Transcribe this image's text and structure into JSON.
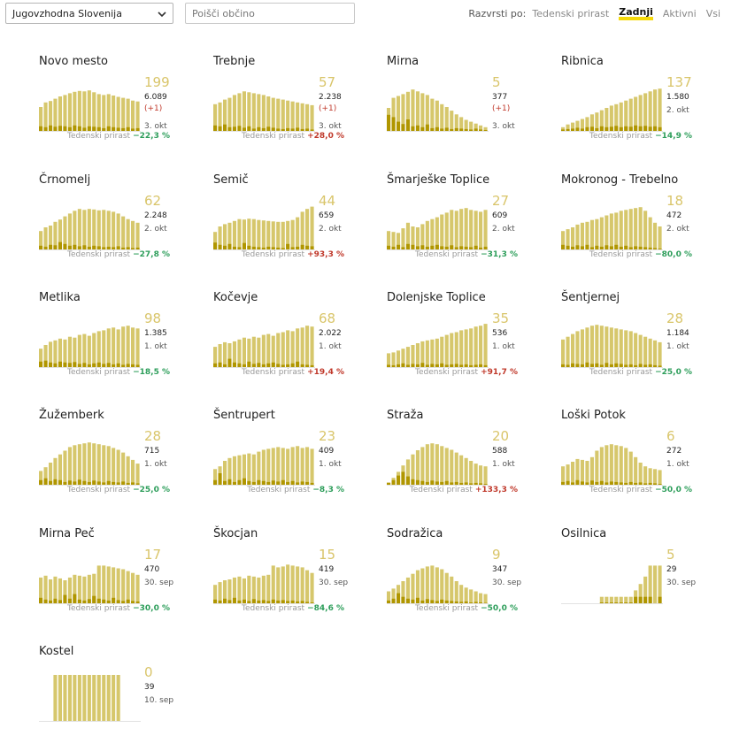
{
  "filters": {
    "region": "Jugovzhodna Slovenija",
    "search_placeholder": "Poišči občino"
  },
  "sort": {
    "label": "Razvrsti po:",
    "options": [
      "Tedenski prirast",
      "Zadnji",
      "Aktivni",
      "Vsi"
    ],
    "active": "Zadnji"
  },
  "trend_label": "Tedenski prirast",
  "colors": {
    "bar": "#d6c76c",
    "bar_dark": "#b09600",
    "number": "#d9c56a",
    "down": "#2e9e5b",
    "up": "#c0392b"
  },
  "municipalities": [
    {
      "name": "Novo mesto",
      "value": "199",
      "total": "6.089",
      "delta": "(+1)",
      "date": "3. okt",
      "trend": "−22,3 %",
      "trend_dir": "down",
      "bars": [
        0.52,
        0.62,
        0.65,
        0.7,
        0.75,
        0.78,
        0.82,
        0.85,
        0.87,
        0.86,
        0.88,
        0.84,
        0.8,
        0.78,
        0.8,
        0.77,
        0.74,
        0.72,
        0.7,
        0.66,
        0.64
      ],
      "new": [
        0.1,
        0.08,
        0.12,
        0.09,
        0.11,
        0.1,
        0.08,
        0.12,
        0.1,
        0.07,
        0.1,
        0.09,
        0.08,
        0.06,
        0.1,
        0.08,
        0.07,
        0.06,
        0.08,
        0.05,
        0.06
      ]
    },
    {
      "name": "Trebnje",
      "value": "57",
      "total": "2.238",
      "delta": "(+1)",
      "date": "3. okt",
      "trend": "+28,0 %",
      "trend_dir": "up",
      "bars": [
        0.58,
        0.62,
        0.68,
        0.72,
        0.78,
        0.82,
        0.86,
        0.84,
        0.82,
        0.8,
        0.78,
        0.75,
        0.72,
        0.7,
        0.68,
        0.66,
        0.64,
        0.62,
        0.6,
        0.58,
        0.56
      ],
      "new": [
        0.12,
        0.1,
        0.14,
        0.08,
        0.09,
        0.11,
        0.07,
        0.1,
        0.05,
        0.08,
        0.06,
        0.09,
        0.07,
        0.05,
        0.04,
        0.06,
        0.05,
        0.07,
        0.04,
        0.05,
        0.03
      ]
    },
    {
      "name": "Mirna",
      "value": "5",
      "total": "377",
      "delta": "(+1)",
      "date": "3. okt",
      "trend": "",
      "trend_dir": "down",
      "bars": [
        0.5,
        0.72,
        0.76,
        0.8,
        0.85,
        0.9,
        0.86,
        0.82,
        0.78,
        0.7,
        0.66,
        0.58,
        0.52,
        0.44,
        0.36,
        0.3,
        0.24,
        0.2,
        0.16,
        0.12,
        0.08
      ],
      "new": [
        0.35,
        0.3,
        0.2,
        0.15,
        0.25,
        0.1,
        0.12,
        0.08,
        0.14,
        0.06,
        0.08,
        0.05,
        0.07,
        0.04,
        0.06,
        0.05,
        0.04,
        0.03,
        0.05,
        0.03,
        0.02
      ]
    },
    {
      "name": "Ribnica",
      "value": "137",
      "total": "1.580",
      "delta": "",
      "date": "2. okt",
      "trend": "−14,9 %",
      "trend_dir": "down",
      "bars": [
        0.08,
        0.14,
        0.18,
        0.22,
        0.26,
        0.3,
        0.36,
        0.4,
        0.45,
        0.5,
        0.55,
        0.58,
        0.62,
        0.66,
        0.7,
        0.74,
        0.78,
        0.82,
        0.86,
        0.9,
        0.92
      ],
      "new": [
        0.03,
        0.04,
        0.05,
        0.07,
        0.05,
        0.08,
        0.09,
        0.06,
        0.1,
        0.08,
        0.09,
        0.11,
        0.08,
        0.1,
        0.09,
        0.12,
        0.1,
        0.11,
        0.09,
        0.1,
        0.08
      ]
    },
    {
      "name": "Črnomelj",
      "value": "62",
      "total": "2.248",
      "delta": "",
      "date": "2. okt",
      "trend": "−27,8 %",
      "trend_dir": "down",
      "bars": [
        0.4,
        0.48,
        0.52,
        0.6,
        0.65,
        0.72,
        0.78,
        0.84,
        0.88,
        0.86,
        0.88,
        0.87,
        0.85,
        0.86,
        0.84,
        0.82,
        0.78,
        0.72,
        0.66,
        0.62,
        0.58
      ],
      "new": [
        0.08,
        0.06,
        0.1,
        0.09,
        0.16,
        0.12,
        0.08,
        0.1,
        0.07,
        0.09,
        0.06,
        0.08,
        0.07,
        0.05,
        0.06,
        0.05,
        0.07,
        0.04,
        0.05,
        0.03,
        0.04
      ]
    },
    {
      "name": "Semič",
      "value": "44",
      "total": "659",
      "delta": "",
      "date": "2. okt",
      "trend": "+93,3 %",
      "trend_dir": "up",
      "bars": [
        0.38,
        0.5,
        0.55,
        0.58,
        0.62,
        0.66,
        0.65,
        0.67,
        0.66,
        0.64,
        0.63,
        0.62,
        0.61,
        0.6,
        0.6,
        0.62,
        0.64,
        0.7,
        0.82,
        0.88,
        0.93
      ],
      "new": [
        0.15,
        0.1,
        0.08,
        0.12,
        0.06,
        0.05,
        0.14,
        0.08,
        0.06,
        0.05,
        0.04,
        0.06,
        0.05,
        0.04,
        0.03,
        0.12,
        0.05,
        0.06,
        0.1,
        0.08,
        0.07
      ]
    },
    {
      "name": "Šmarješke Toplice",
      "value": "27",
      "total": "609",
      "delta": "",
      "date": "2. okt",
      "trend": "−31,3 %",
      "trend_dir": "down",
      "bars": [
        0.4,
        0.38,
        0.36,
        0.46,
        0.58,
        0.5,
        0.48,
        0.55,
        0.62,
        0.66,
        0.7,
        0.76,
        0.8,
        0.86,
        0.84,
        0.88,
        0.9,
        0.86,
        0.84,
        0.82,
        0.86
      ],
      "new": [
        0.08,
        0.06,
        0.1,
        0.05,
        0.12,
        0.1,
        0.07,
        0.09,
        0.06,
        0.08,
        0.1,
        0.07,
        0.06,
        0.09,
        0.05,
        0.07,
        0.06,
        0.05,
        0.08,
        0.04,
        0.06
      ]
    },
    {
      "name": "Mokronog - Trebelno",
      "value": "18",
      "total": "472",
      "delta": "",
      "date": "2. okt",
      "trend": "−80,0 %",
      "trend_dir": "down",
      "bars": [
        0.4,
        0.44,
        0.48,
        0.54,
        0.58,
        0.6,
        0.64,
        0.66,
        0.7,
        0.74,
        0.78,
        0.8,
        0.84,
        0.86,
        0.88,
        0.9,
        0.92,
        0.84,
        0.7,
        0.58,
        0.5
      ],
      "new": [
        0.1,
        0.08,
        0.06,
        0.09,
        0.07,
        0.1,
        0.05,
        0.08,
        0.06,
        0.09,
        0.07,
        0.1,
        0.06,
        0.08,
        0.05,
        0.07,
        0.06,
        0.05,
        0.04,
        0.03,
        0.02
      ]
    },
    {
      "name": "Metlika",
      "value": "98",
      "total": "1.385",
      "delta": "",
      "date": "1. okt",
      "trend": "−18,5 %",
      "trend_dir": "down",
      "bars": [
        0.4,
        0.48,
        0.55,
        0.58,
        0.62,
        0.6,
        0.66,
        0.64,
        0.7,
        0.72,
        0.68,
        0.74,
        0.78,
        0.8,
        0.84,
        0.86,
        0.82,
        0.88,
        0.9,
        0.86,
        0.84
      ],
      "new": [
        0.12,
        0.14,
        0.1,
        0.08,
        0.12,
        0.1,
        0.09,
        0.11,
        0.07,
        0.09,
        0.06,
        0.08,
        0.1,
        0.07,
        0.09,
        0.06,
        0.08,
        0.05,
        0.07,
        0.06,
        0.05
      ]
    },
    {
      "name": "Kočevje",
      "value": "68",
      "total": "2.022",
      "delta": "",
      "date": "1. okt",
      "trend": "+19,4 %",
      "trend_dir": "up",
      "bars": [
        0.44,
        0.5,
        0.54,
        0.52,
        0.56,
        0.6,
        0.64,
        0.62,
        0.66,
        0.64,
        0.7,
        0.72,
        0.68,
        0.74,
        0.76,
        0.8,
        0.78,
        0.84,
        0.86,
        0.9,
        0.88
      ],
      "new": [
        0.08,
        0.1,
        0.06,
        0.18,
        0.1,
        0.08,
        0.06,
        0.12,
        0.07,
        0.09,
        0.06,
        0.08,
        0.1,
        0.07,
        0.05,
        0.06,
        0.08,
        0.12,
        0.06,
        0.05,
        0.04
      ]
    },
    {
      "name": "Dolenjske Toplice",
      "value": "35",
      "total": "536",
      "delta": "",
      "date": "1. okt",
      "trend": "+91,7 %",
      "trend_dir": "up",
      "bars": [
        0.3,
        0.32,
        0.36,
        0.4,
        0.44,
        0.48,
        0.52,
        0.56,
        0.58,
        0.6,
        0.62,
        0.66,
        0.7,
        0.74,
        0.76,
        0.8,
        0.82,
        0.84,
        0.88,
        0.9,
        0.94
      ],
      "new": [
        0.05,
        0.04,
        0.06,
        0.08,
        0.05,
        0.07,
        0.06,
        0.09,
        0.05,
        0.07,
        0.06,
        0.08,
        0.05,
        0.06,
        0.07,
        0.05,
        0.06,
        0.04,
        0.05,
        0.06,
        0.04
      ]
    },
    {
      "name": "Šentjernej",
      "value": "28",
      "total": "1.184",
      "delta": "",
      "date": "1. okt",
      "trend": "−25,0 %",
      "trend_dir": "down",
      "bars": [
        0.6,
        0.66,
        0.72,
        0.78,
        0.82,
        0.86,
        0.9,
        0.92,
        0.9,
        0.88,
        0.86,
        0.84,
        0.82,
        0.8,
        0.78,
        0.74,
        0.7,
        0.66,
        0.62,
        0.58,
        0.54
      ],
      "new": [
        0.06,
        0.05,
        0.08,
        0.07,
        0.06,
        0.1,
        0.07,
        0.08,
        0.05,
        0.09,
        0.06,
        0.08,
        0.07,
        0.05,
        0.06,
        0.04,
        0.07,
        0.05,
        0.06,
        0.04,
        0.03
      ]
    },
    {
      "name": "Žužemberk",
      "value": "28",
      "total": "715",
      "delta": "",
      "date": "1. okt",
      "trend": "−25,0 %",
      "trend_dir": "down",
      "bars": [
        0.3,
        0.38,
        0.48,
        0.58,
        0.66,
        0.74,
        0.82,
        0.86,
        0.88,
        0.9,
        0.92,
        0.9,
        0.88,
        0.86,
        0.84,
        0.8,
        0.76,
        0.7,
        0.62,
        0.54,
        0.46
      ],
      "new": [
        0.1,
        0.14,
        0.08,
        0.12,
        0.1,
        0.06,
        0.09,
        0.07,
        0.11,
        0.08,
        0.06,
        0.09,
        0.07,
        0.05,
        0.08,
        0.06,
        0.05,
        0.07,
        0.04,
        0.05,
        0.03
      ]
    },
    {
      "name": "Šentrupert",
      "value": "23",
      "total": "409",
      "delta": "",
      "date": "1. okt",
      "trend": "−8,3 %",
      "trend_dir": "down",
      "bars": [
        0.34,
        0.4,
        0.52,
        0.58,
        0.62,
        0.64,
        0.66,
        0.68,
        0.66,
        0.72,
        0.76,
        0.78,
        0.8,
        0.82,
        0.8,
        0.78,
        0.82,
        0.84,
        0.8,
        0.82,
        0.78
      ],
      "new": [
        0.1,
        0.25,
        0.08,
        0.12,
        0.06,
        0.1,
        0.14,
        0.08,
        0.06,
        0.1,
        0.08,
        0.06,
        0.09,
        0.07,
        0.1,
        0.06,
        0.08,
        0.05,
        0.07,
        0.06,
        0.04
      ]
    },
    {
      "name": "Straža",
      "value": "20",
      "total": "588",
      "delta": "",
      "date": "1. okt",
      "trend": "+133,3 %",
      "trend_dir": "up",
      "bars": [
        0.05,
        0.15,
        0.28,
        0.42,
        0.55,
        0.66,
        0.75,
        0.82,
        0.88,
        0.9,
        0.88,
        0.84,
        0.8,
        0.76,
        0.7,
        0.64,
        0.58,
        0.52,
        0.46,
        0.42,
        0.4
      ],
      "new": [
        0.04,
        0.1,
        0.2,
        0.28,
        0.18,
        0.12,
        0.1,
        0.08,
        0.06,
        0.09,
        0.07,
        0.06,
        0.08,
        0.05,
        0.06,
        0.04,
        0.05,
        0.03,
        0.04,
        0.03,
        0.02
      ]
    },
    {
      "name": "Loški Potok",
      "value": "6",
      "total": "272",
      "delta": "",
      "date": "1. okt",
      "trend": "−50,0 %",
      "trend_dir": "down",
      "bars": [
        0.4,
        0.44,
        0.5,
        0.56,
        0.54,
        0.52,
        0.6,
        0.74,
        0.82,
        0.86,
        0.88,
        0.86,
        0.84,
        0.8,
        0.72,
        0.6,
        0.48,
        0.4,
        0.36,
        0.34,
        0.32
      ],
      "new": [
        0.06,
        0.08,
        0.05,
        0.1,
        0.07,
        0.05,
        0.09,
        0.06,
        0.08,
        0.05,
        0.07,
        0.06,
        0.05,
        0.04,
        0.06,
        0.04,
        0.05,
        0.03,
        0.04,
        0.03,
        0.02
      ]
    },
    {
      "name": "Mirna Peč",
      "value": "17",
      "total": "470",
      "delta": "",
      "date": "30. sep",
      "trend": "−30,0 %",
      "trend_dir": "down",
      "bars": [
        0.56,
        0.6,
        0.52,
        0.58,
        0.54,
        0.5,
        0.56,
        0.62,
        0.6,
        0.58,
        0.62,
        0.64,
        0.82,
        0.82,
        0.8,
        0.78,
        0.76,
        0.74,
        0.7,
        0.66,
        0.62
      ],
      "new": [
        0.12,
        0.08,
        0.06,
        0.1,
        0.07,
        0.18,
        0.1,
        0.2,
        0.08,
        0.06,
        0.09,
        0.16,
        0.1,
        0.08,
        0.06,
        0.12,
        0.07,
        0.05,
        0.08,
        0.05,
        0.04
      ]
    },
    {
      "name": "Škocjan",
      "value": "15",
      "total": "419",
      "delta": "",
      "date": "30. sep",
      "trend": "−84,6 %",
      "trend_dir": "down",
      "bars": [
        0.4,
        0.46,
        0.5,
        0.52,
        0.56,
        0.58,
        0.54,
        0.6,
        0.58,
        0.56,
        0.6,
        0.62,
        0.82,
        0.78,
        0.8,
        0.84,
        0.82,
        0.8,
        0.78,
        0.72,
        0.66
      ],
      "new": [
        0.08,
        0.06,
        0.1,
        0.07,
        0.12,
        0.06,
        0.08,
        0.05,
        0.09,
        0.06,
        0.07,
        0.05,
        0.08,
        0.06,
        0.07,
        0.05,
        0.06,
        0.04,
        0.05,
        0.03,
        0.02
      ]
    },
    {
      "name": "Sodražica",
      "value": "9",
      "total": "347",
      "delta": "",
      "date": "30. sep",
      "trend": "−50,0 %",
      "trend_dir": "down",
      "bars": [
        0.26,
        0.32,
        0.4,
        0.48,
        0.56,
        0.64,
        0.72,
        0.76,
        0.8,
        0.82,
        0.78,
        0.74,
        0.66,
        0.58,
        0.48,
        0.4,
        0.34,
        0.3,
        0.26,
        0.22,
        0.2
      ],
      "new": [
        0.06,
        0.1,
        0.22,
        0.14,
        0.1,
        0.08,
        0.12,
        0.06,
        0.09,
        0.07,
        0.05,
        0.08,
        0.06,
        0.05,
        0.04,
        0.03,
        0.04,
        0.02,
        0.03,
        0.02,
        0.01
      ]
    },
    {
      "name": "Osilnica",
      "value": "5",
      "total": "29",
      "delta": "",
      "date": "30. sep",
      "trend": "",
      "trend_dir": "down",
      "bars": [
        0,
        0,
        0,
        0,
        0,
        0,
        0,
        0,
        0.14,
        0.14,
        0.14,
        0.14,
        0.14,
        0.14,
        0.14,
        0.28,
        0.42,
        0.58,
        0.82,
        0.82,
        0.82
      ],
      "new": [
        0,
        0,
        0,
        0,
        0,
        0,
        0,
        0,
        0.02,
        0.02,
        0.02,
        0.02,
        0.02,
        0.02,
        0.02,
        0.14,
        0.14,
        0.14,
        0.14,
        0,
        0.14
      ]
    },
    {
      "name": "Kostel",
      "value": "0",
      "total": "39",
      "delta": "",
      "date": "10. sep",
      "trend": "",
      "trend_dir": "down",
      "bars": [
        0,
        0,
        0,
        1,
        1,
        1,
        1,
        1,
        1,
        1,
        1,
        1,
        1,
        1,
        1,
        1,
        1,
        0,
        0,
        0,
        0
      ],
      "new": [
        0,
        0,
        0,
        0,
        0,
        0,
        0,
        0,
        0,
        0,
        0,
        0,
        0,
        0,
        0,
        0,
        0,
        0,
        0,
        0,
        0
      ]
    }
  ]
}
